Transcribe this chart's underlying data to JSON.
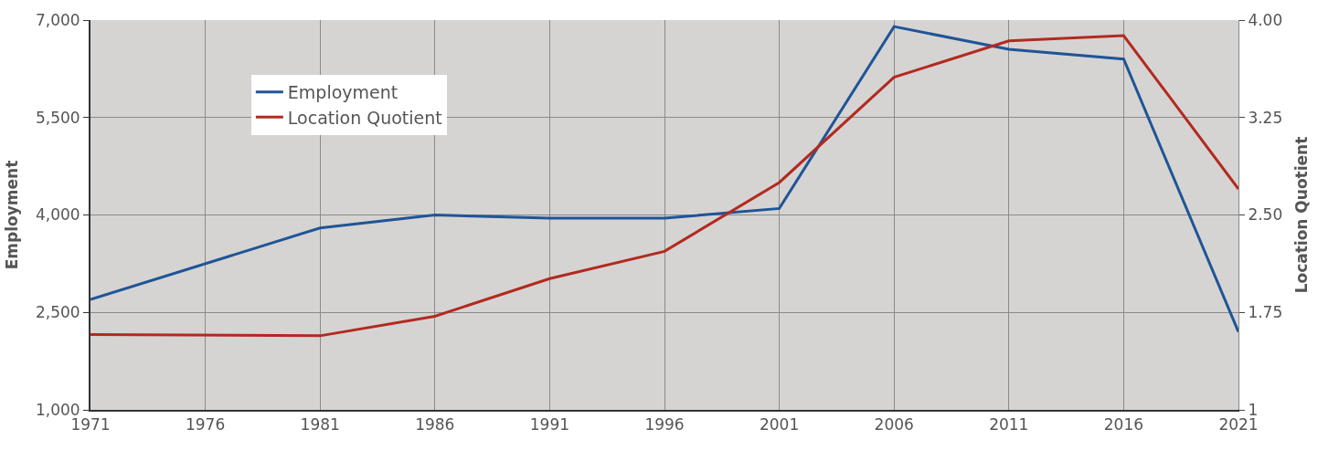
{
  "chart_data": {
    "type": "line",
    "xlabel": null,
    "ylabel": "Employment",
    "y2label": "Location Quotient",
    "x": [
      1971,
      1981,
      1986,
      1991,
      1996,
      2001,
      2006,
      2011,
      2016,
      2021
    ],
    "series": [
      {
        "name": "Employment",
        "color": "#1f5597",
        "values": [
          2700,
          3800,
          4000,
          3950,
          3950,
          4100,
          6900,
          6550,
          6400,
          2200
        ]
      },
      {
        "name": "Location Quotient",
        "color": "#b22a20",
        "axis": "y2",
        "values": [
          1.58,
          1.57,
          1.72,
          2.01,
          2.22,
          2.75,
          3.56,
          3.84,
          3.88,
          2.7
        ]
      }
    ],
    "xlim": [
      1971,
      2021
    ],
    "xticks": [
      1971,
      1976,
      1981,
      1986,
      1991,
      1996,
      2001,
      2006,
      2011,
      2016,
      2021
    ],
    "ylim": [
      1000,
      7000
    ],
    "yticks": [
      {
        "value": 1000,
        "label": "1,000"
      },
      {
        "value": 2500,
        "label": "2,500"
      },
      {
        "value": 4000,
        "label": "4,000"
      },
      {
        "value": 5500,
        "label": "5,500"
      },
      {
        "value": 7000,
        "label": "7,000"
      }
    ],
    "y2lim": [
      1,
      4
    ],
    "y2ticks": [
      1,
      1.75,
      {
        "value": 2.5,
        "label": "2.50"
      },
      3.25,
      {
        "value": 4,
        "label": "4.00"
      }
    ],
    "grid": true,
    "legend": "top left",
    "marker": "none",
    "line_style": "solid"
  }
}
